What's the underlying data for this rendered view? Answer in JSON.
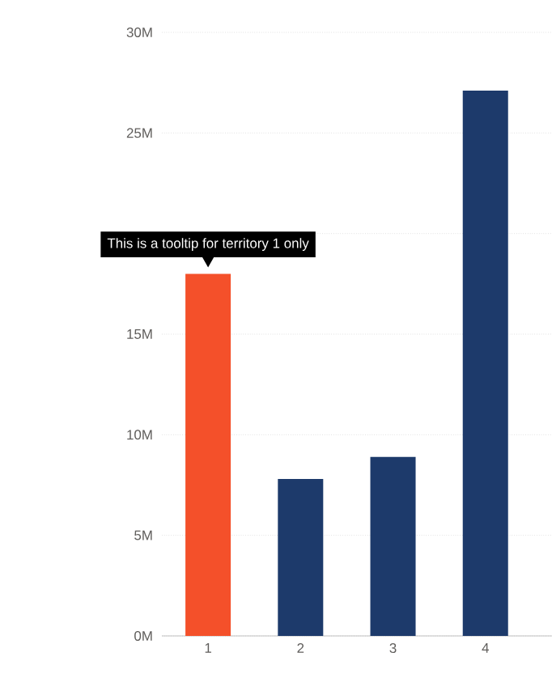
{
  "chart_data": {
    "type": "bar",
    "categories": [
      "1",
      "2",
      "3",
      "4"
    ],
    "values": [
      18,
      7.8,
      8.9,
      27.1
    ],
    "colors": [
      "#f4502a",
      "#1d3a6b",
      "#1d3a6b",
      "#1d3a6b"
    ],
    "ylim": [
      0,
      30
    ],
    "yticks": [
      {
        "value": 0,
        "label": "0M"
      },
      {
        "value": 5,
        "label": "5M"
      },
      {
        "value": 10,
        "label": "10M"
      },
      {
        "value": 15,
        "label": "15M"
      },
      {
        "value": 20,
        "label": null
      },
      {
        "value": 25,
        "label": "25M"
      },
      {
        "value": 30,
        "label": "30M"
      }
    ],
    "grid": "y",
    "annotations": [
      {
        "text": "This is a tooltip for territory 1 only",
        "x": "1",
        "y": 18
      }
    ]
  }
}
